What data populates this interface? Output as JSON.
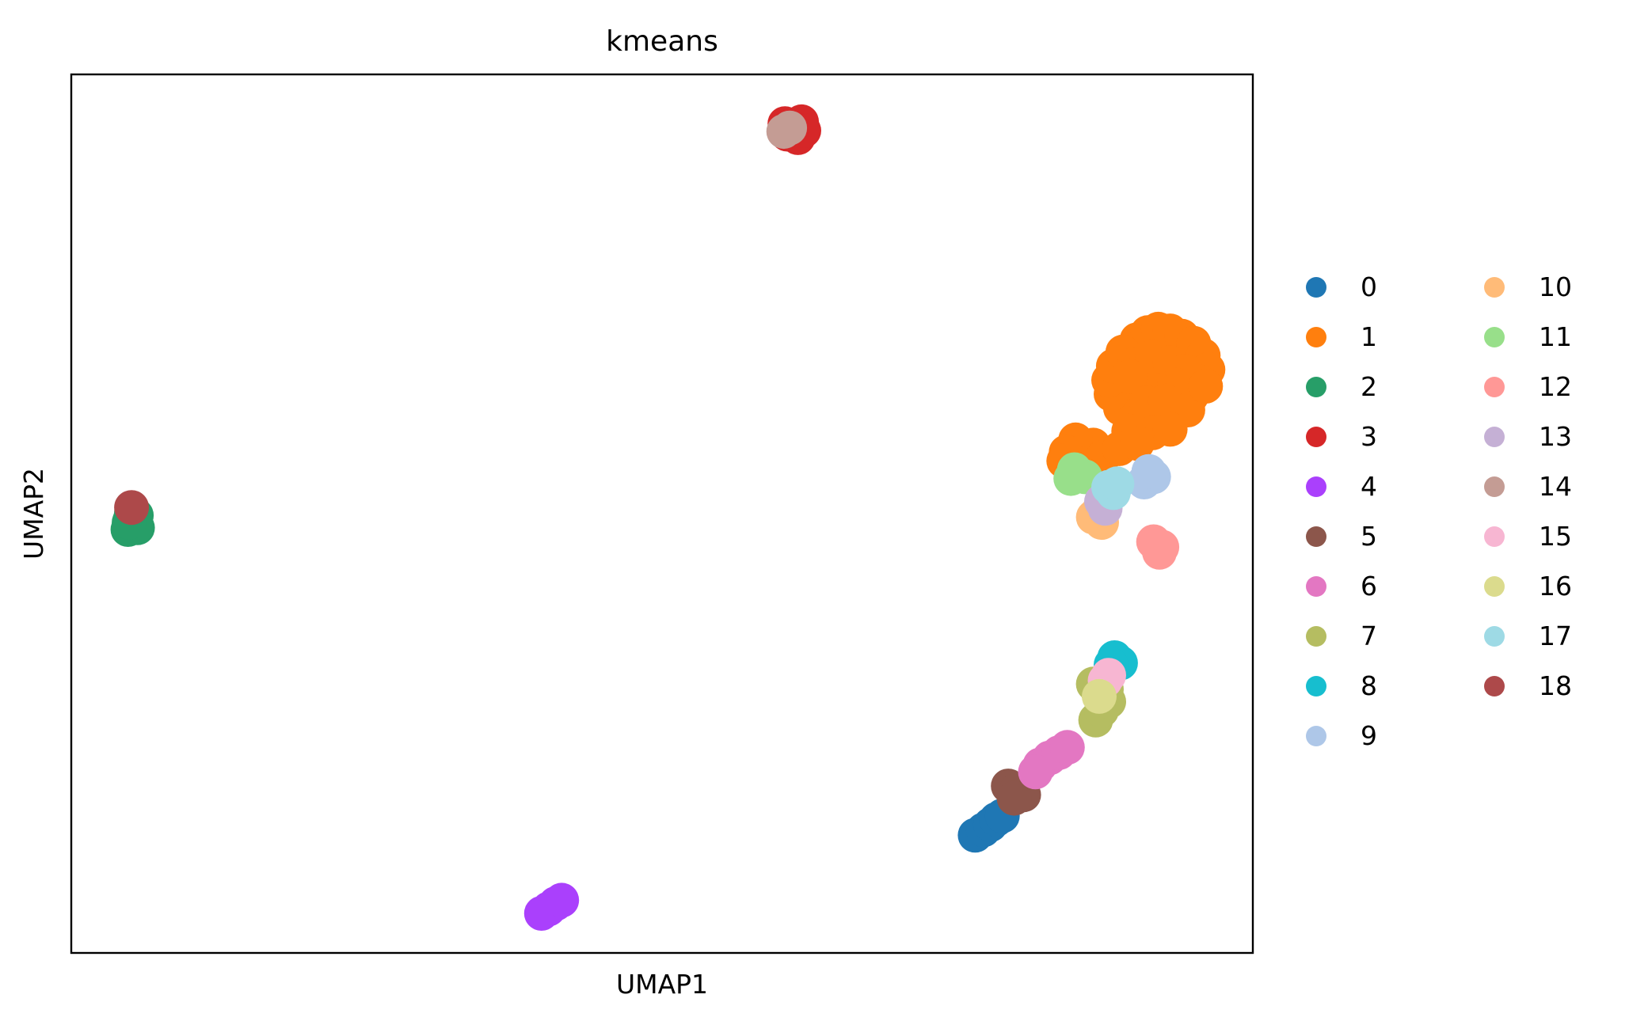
{
  "chart_data": {
    "type": "scatter",
    "title": "kmeans",
    "xlabel": "UMAP1",
    "ylabel": "UMAP2",
    "xlim": [
      0,
      100
    ],
    "ylim": [
      0,
      100
    ],
    "show_ticks": false,
    "grid": false,
    "legend": {
      "placement": "right",
      "columns": 2
    },
    "series": [
      {
        "name": "0",
        "color": "#1f77b4",
        "points": [
          [
            76.5,
            13.4
          ],
          [
            77.2,
            14.0
          ],
          [
            77.8,
            14.6
          ],
          [
            78.3,
            15.2
          ],
          [
            78.8,
            15.6
          ]
        ]
      },
      {
        "name": "1",
        "color": "#ff7f0e",
        "points": [
          [
            90.2,
            69.8
          ],
          [
            91.1,
            70.6
          ],
          [
            92.0,
            71.0
          ],
          [
            93.0,
            70.8
          ],
          [
            94.0,
            70.2
          ],
          [
            95.0,
            69.4
          ],
          [
            95.8,
            68.0
          ],
          [
            96.2,
            66.4
          ],
          [
            95.5,
            65.0
          ],
          [
            94.8,
            63.4
          ],
          [
            93.8,
            62.0
          ],
          [
            92.5,
            61.0
          ],
          [
            91.0,
            60.4
          ],
          [
            89.8,
            60.8
          ],
          [
            88.8,
            62.0
          ],
          [
            88.0,
            63.6
          ],
          [
            87.8,
            65.2
          ],
          [
            88.2,
            66.8
          ],
          [
            89.0,
            68.4
          ],
          [
            90.0,
            67.0
          ],
          [
            91.5,
            67.8
          ],
          [
            93.0,
            67.2
          ],
          [
            94.2,
            66.2
          ],
          [
            93.5,
            64.6
          ],
          [
            92.0,
            64.0
          ],
          [
            90.5,
            64.6
          ],
          [
            89.6,
            65.6
          ],
          [
            91.0,
            62.6
          ],
          [
            92.6,
            62.8
          ],
          [
            94.5,
            61.8
          ],
          [
            91.5,
            59.2
          ],
          [
            93.0,
            59.6
          ],
          [
            89.5,
            59.4
          ],
          [
            86.0,
            56.8
          ],
          [
            86.5,
            57.8
          ],
          [
            85.0,
            58.4
          ],
          [
            84.2,
            57.0
          ],
          [
            84.0,
            56.0
          ],
          [
            85.5,
            55.6
          ],
          [
            87.3,
            56.4
          ],
          [
            88.7,
            57.4
          ],
          [
            90.2,
            58.0
          ],
          [
            96.0,
            64.5
          ]
        ]
      },
      {
        "name": "2",
        "color": "#279e68",
        "points": [
          [
            5.0,
            49.4
          ],
          [
            5.5,
            49.8
          ],
          [
            5.3,
            48.6
          ],
          [
            4.8,
            48.2
          ],
          [
            5.6,
            48.4
          ],
          [
            5.1,
            50.2
          ],
          [
            4.9,
            49.0
          ]
        ]
      },
      {
        "name": "3",
        "color": "#d62728",
        "points": [
          [
            61.2,
            93.8
          ],
          [
            61.8,
            94.6
          ],
          [
            60.6,
            93.2
          ],
          [
            61.5,
            92.8
          ],
          [
            60.4,
            94.4
          ],
          [
            62.0,
            93.6
          ],
          [
            61.0,
            94.0
          ]
        ]
      },
      {
        "name": "4",
        "color": "#aa40fc",
        "points": [
          [
            39.8,
            4.5
          ],
          [
            40.4,
            5.0
          ],
          [
            41.0,
            5.6
          ],
          [
            41.5,
            6.0
          ]
        ]
      },
      {
        "name": "5",
        "color": "#8c564b",
        "points": [
          [
            79.3,
            19.0
          ],
          [
            80.0,
            18.5
          ],
          [
            80.6,
            18.0
          ],
          [
            79.8,
            17.6
          ]
        ]
      },
      {
        "name": "6",
        "color": "#e377c2",
        "points": [
          [
            82.0,
            21.4
          ],
          [
            82.8,
            22.2
          ],
          [
            83.6,
            22.8
          ],
          [
            84.3,
            23.4
          ],
          [
            81.6,
            20.6
          ]
        ]
      },
      {
        "name": "7",
        "color": "#b5bd61",
        "points": [
          [
            86.7,
            26.5
          ],
          [
            87.2,
            27.6
          ],
          [
            87.8,
            28.6
          ],
          [
            86.9,
            29.8
          ],
          [
            86.5,
            30.6
          ],
          [
            87.6,
            30.0
          ]
        ]
      },
      {
        "name": "8",
        "color": "#17becf",
        "points": [
          [
            88.3,
            33.6
          ],
          [
            88.8,
            33.0
          ],
          [
            88.0,
            32.8
          ]
        ]
      },
      {
        "name": "9",
        "color": "#aec7e8",
        "points": [
          [
            91.6,
            54.2
          ],
          [
            90.8,
            53.6
          ],
          [
            91.2,
            54.8
          ]
        ]
      },
      {
        "name": "10",
        "color": "#ffbb78",
        "points": [
          [
            86.5,
            49.6
          ],
          [
            87.2,
            49.0
          ],
          [
            87.0,
            50.4
          ]
        ]
      },
      {
        "name": "11",
        "color": "#98df8a",
        "points": [
          [
            84.9,
            55.0
          ],
          [
            85.8,
            54.2
          ],
          [
            84.6,
            54.0
          ]
        ]
      },
      {
        "name": "12",
        "color": "#ff9896",
        "points": [
          [
            92.3,
            46.2
          ],
          [
            91.6,
            46.8
          ],
          [
            92.1,
            45.6
          ]
        ]
      },
      {
        "name": "13",
        "color": "#c5b0d5",
        "points": [
          [
            87.5,
            50.6
          ],
          [
            87.2,
            51.4
          ]
        ]
      },
      {
        "name": "14",
        "color": "#c49c94",
        "points": [
          [
            60.3,
            93.5
          ],
          [
            60.8,
            93.9
          ]
        ]
      },
      {
        "name": "15",
        "color": "#f7b6d2",
        "points": [
          [
            87.5,
            31.0
          ],
          [
            87.8,
            31.6
          ]
        ]
      },
      {
        "name": "16",
        "color": "#dbdb8d",
        "points": [
          [
            87.0,
            29.2
          ]
        ]
      },
      {
        "name": "17",
        "color": "#9edae5",
        "points": [
          [
            88.2,
            52.4
          ],
          [
            87.8,
            53.0
          ],
          [
            88.5,
            53.4
          ]
        ]
      },
      {
        "name": "18",
        "color": "#ad494a",
        "points": [
          [
            5.1,
            50.7
          ]
        ]
      }
    ]
  }
}
